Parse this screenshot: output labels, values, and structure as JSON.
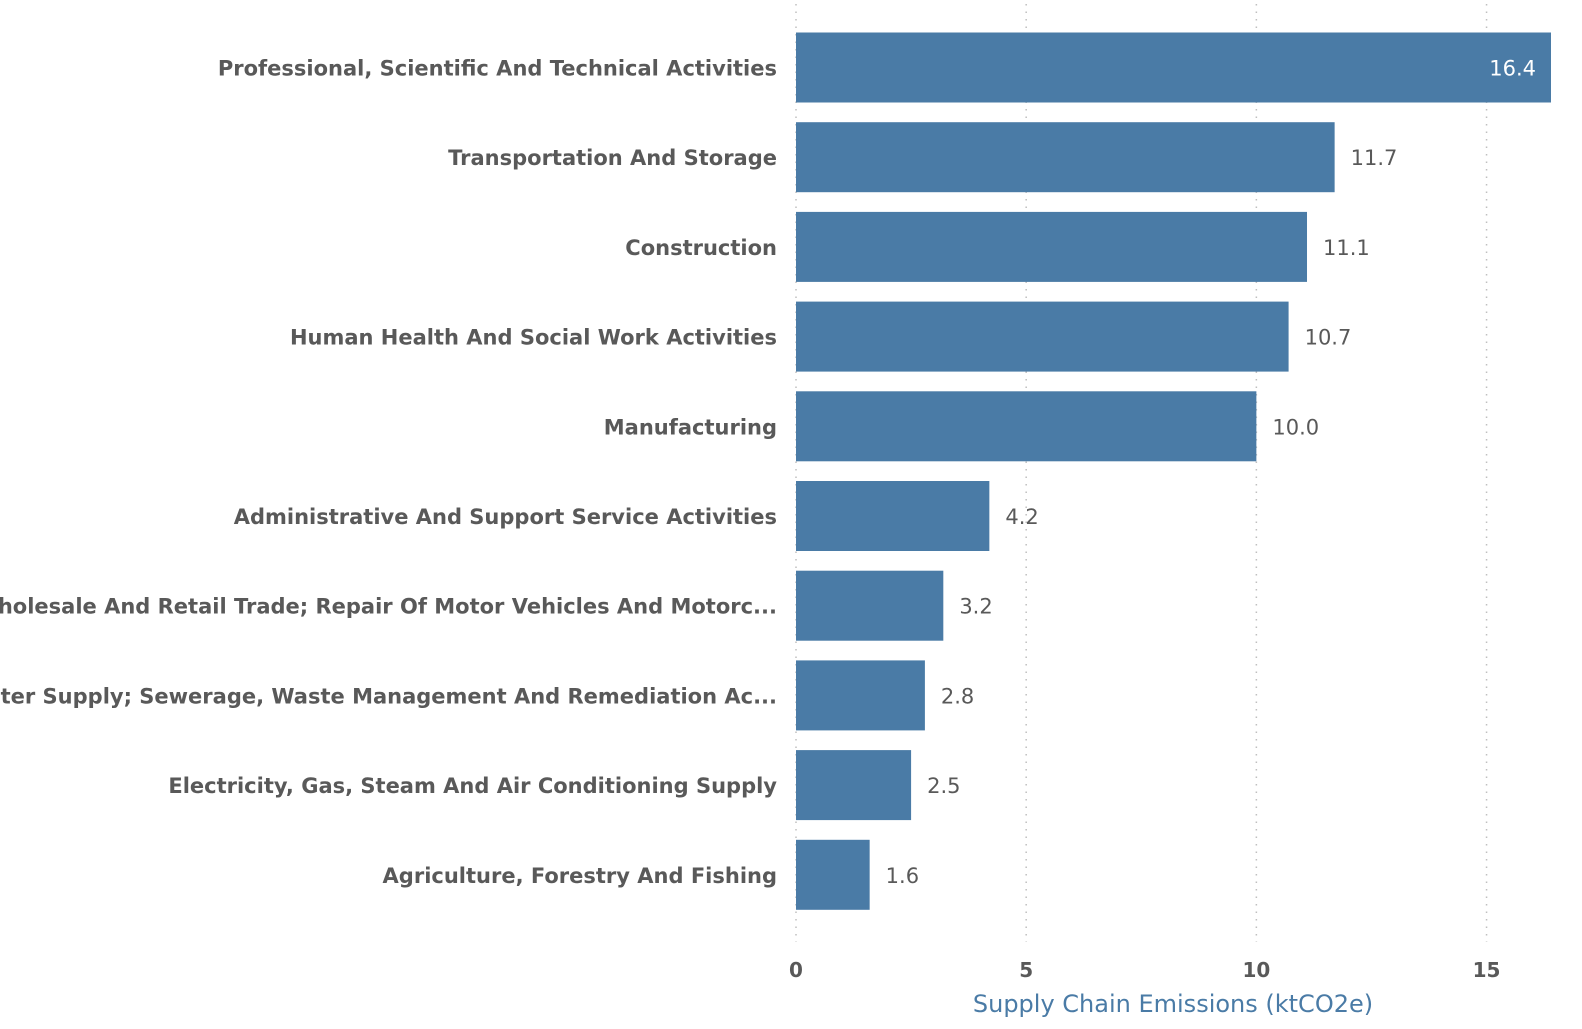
{
  "chart_data": {
    "type": "bar",
    "orientation": "horizontal",
    "categories": [
      "Professional, Scientific And Technical Activities",
      "Transportation And Storage",
      "Construction",
      "Human Health And Social Work Activities",
      "Manufacturing",
      "Administrative And Support Service Activities",
      "Wholesale And Retail Trade; Repair Of Motor Vehicles And Motorc...",
      "Water Supply; Sewerage, Waste Management And Remediation Ac...",
      "Electricity, Gas, Steam And Air Conditioning Supply",
      "Agriculture, Forestry And Fishing"
    ],
    "values": [
      16.4,
      11.7,
      11.1,
      10.7,
      10.0,
      4.2,
      3.2,
      2.8,
      2.5,
      1.6
    ],
    "value_labels": [
      "16.4",
      "11.7",
      "11.1",
      "10.7",
      "10.0",
      "4.2",
      "3.2",
      "2.8",
      "2.5",
      "1.6"
    ],
    "xlabel": "Supply Chain Emissions (ktCO2e)",
    "xticks": [
      0,
      5,
      10,
      15
    ],
    "xlim": [
      0,
      16.4
    ],
    "grid": "vertical dotted",
    "bar_color": "#4a7ba6",
    "axis_title_color": "#4a7ba6"
  }
}
